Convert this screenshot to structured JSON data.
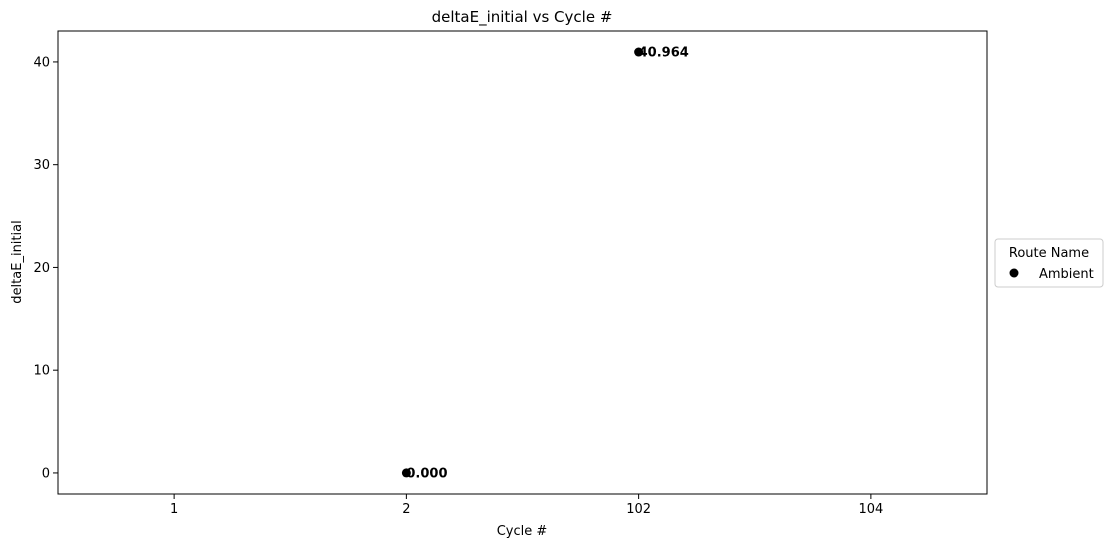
{
  "chart_data": {
    "type": "scatter",
    "title": "deltaE_initial vs Cycle #",
    "xlabel": "Cycle #",
    "ylabel": "deltaE_initial",
    "categories": [
      "1",
      "2",
      "102",
      "104"
    ],
    "yticks": [
      "0",
      "10",
      "20",
      "30",
      "40"
    ],
    "ylim": [
      -2.05,
      43.01
    ],
    "grid": false,
    "legend": {
      "title": "Route Name",
      "placement": "right-outside",
      "entries": [
        "Ambient"
      ]
    },
    "series": [
      {
        "name": "Ambient",
        "color": "#000000",
        "points": [
          {
            "x": "2",
            "y": 0.0,
            "label": "0.000"
          },
          {
            "x": "102",
            "y": 40.964,
            "label": "40.964"
          }
        ]
      }
    ]
  }
}
